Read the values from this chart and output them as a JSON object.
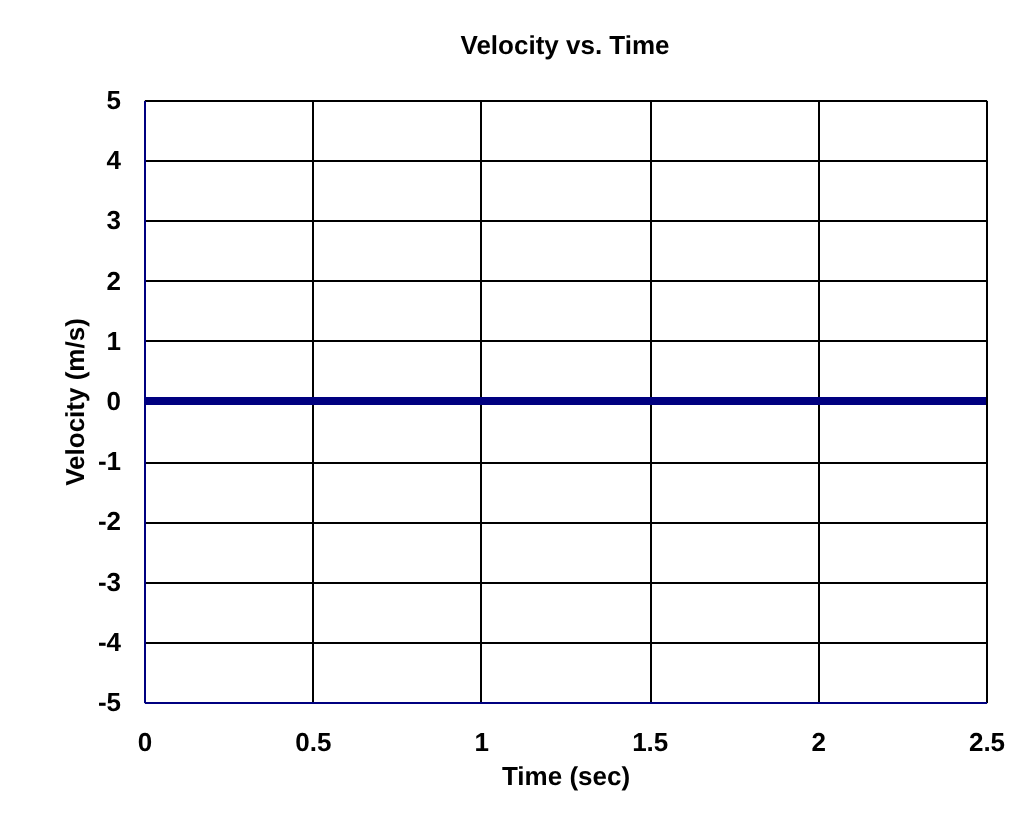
{
  "chart_data": {
    "type": "line",
    "title": "Velocity vs. Time",
    "xlabel": "Time (sec)",
    "ylabel": "Velocity (m/s)",
    "x": [
      0,
      2.5
    ],
    "series": [
      {
        "color": "#000080",
        "values": [
          0,
          0
        ]
      }
    ],
    "xlim": [
      0,
      2.5
    ],
    "xticks": [
      0,
      0.5,
      1,
      1.5,
      2,
      2.5
    ],
    "ylim": [
      -5,
      5
    ],
    "yticks": [
      -5,
      -4,
      -3,
      -2,
      -1,
      0,
      1,
      2,
      3,
      4,
      5
    ],
    "grid": true,
    "marker": "none",
    "line_style": "solid"
  }
}
